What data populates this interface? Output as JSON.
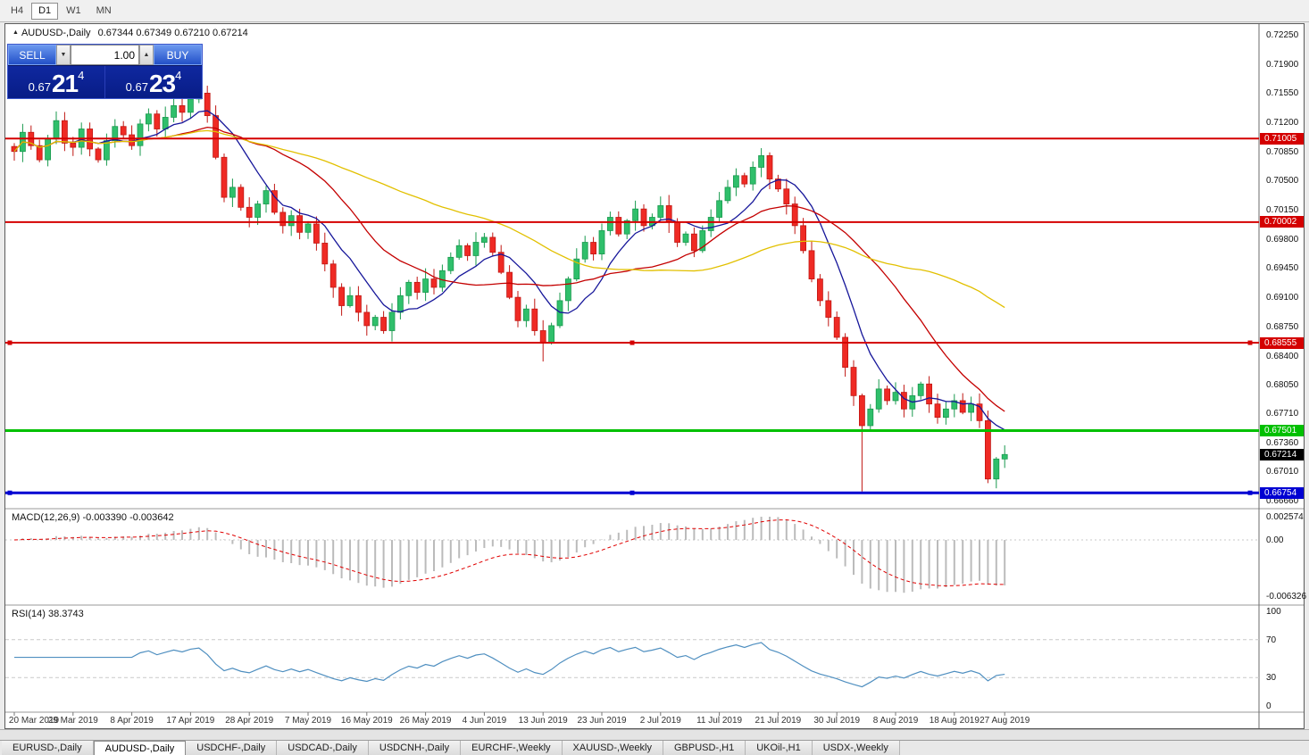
{
  "toolbar": {
    "timeframes": [
      {
        "label": "H4",
        "active": false
      },
      {
        "label": "D1",
        "active": true
      },
      {
        "label": "W1",
        "active": false
      },
      {
        "label": "MN",
        "active": false
      }
    ]
  },
  "chart": {
    "title_marker": "▲",
    "title_symbol": "AUDUSD-,Daily",
    "title_ohlc": "0.67344 0.67349 0.67210 0.67214",
    "trade_panel": {
      "sell_label": "SELL",
      "buy_label": "BUY",
      "volume_value": "1.00",
      "volume_combo_glyph": "▼",
      "volume_up_glyph": "▲",
      "sell_price": {
        "prefix": "0.67",
        "big": "21",
        "sup": "4"
      },
      "buy_price": {
        "prefix": "0.67",
        "big": "23",
        "sup": "4"
      }
    },
    "price_axis_ticks": [
      "0.72250",
      "0.71900",
      "0.71550",
      "0.71200",
      "0.70850",
      "0.70500",
      "0.70150",
      "0.69800",
      "0.69450",
      "0.69100",
      "0.68750",
      "0.68400",
      "0.68050",
      "0.67710",
      "0.67360",
      "0.67010",
      "0.66660"
    ],
    "levels": [
      {
        "price": 0.71005,
        "label": "0.71005",
        "color": "#d40000",
        "width": 2,
        "markers": false
      },
      {
        "price": 0.70002,
        "label": "0.70002",
        "color": "#d40000",
        "width": 2,
        "markers": false
      },
      {
        "price": 0.68555,
        "label": "0.68555",
        "color": "#d40000",
        "width": 2,
        "markers": true
      },
      {
        "price": 0.67501,
        "label": "0.67501",
        "color": "#00c000",
        "width": 3,
        "markers": false
      },
      {
        "price": 0.66754,
        "label": "0.66754",
        "color": "#0000d2",
        "width": 3,
        "markers": true
      }
    ],
    "current_price": {
      "value": 0.67214,
      "label": "0.67214"
    },
    "date_labels": [
      "20 Mar 2019",
      "29 Mar 2019",
      "8 Apr 2019",
      "17 Apr 2019",
      "28 Apr 2019",
      "7 May 2019",
      "16 May 2019",
      "26 May 2019",
      "4 Jun 2019",
      "13 Jun 2019",
      "23 Jun 2019",
      "2 Jul 2019",
      "11 Jul 2019",
      "21 Jul 2019",
      "30 Jul 2019",
      "8 Aug 2019",
      "18 Aug 2019",
      "27 Aug 2019"
    ]
  },
  "macd_panel": {
    "title": "MACD(12,26,9) -0.003390 -0.003642",
    "axis_ticks": [
      "0.002574",
      "0.00",
      "-0.006326"
    ]
  },
  "rsi_panel": {
    "title": "RSI(14) 38.3743",
    "axis_ticks": [
      "100",
      "70",
      "30",
      "0"
    ]
  },
  "tabs": [
    {
      "label": "EURUSD-,Daily",
      "active": false
    },
    {
      "label": "AUDUSD-,Daily",
      "active": true
    },
    {
      "label": "USDCHF-,Daily",
      "active": false
    },
    {
      "label": "USDCAD-,Daily",
      "active": false
    },
    {
      "label": "USDCNH-,Daily",
      "active": false
    },
    {
      "label": "EURCHF-,Weekly",
      "active": false
    },
    {
      "label": "XAUUSD-,Weekly",
      "active": false
    },
    {
      "label": "GBPUSD-,H1",
      "active": false
    },
    {
      "label": "UKOil-,H1",
      "active": false
    },
    {
      "label": "USDX-,Weekly",
      "active": false
    }
  ],
  "colors": {
    "bull": "#2fbf6b",
    "bull_border": "#1a9a4e",
    "bear": "#ef2a24",
    "bear_border": "#c01713",
    "macd_hist": "#bbbbbb",
    "macd_signal": "#e00000",
    "rsi_line": "#4f8fc0",
    "grid_dash": "#c9c9c9"
  },
  "chart_data": {
    "type": "candlestick",
    "symbol": "AUDUSD",
    "timeframe": "Daily",
    "title": "AUDUSD-,Daily",
    "y_range": [
      0.6666,
      0.7225
    ],
    "closes": [
      0.7085,
      0.7108,
      0.7092,
      0.7075,
      0.71,
      0.7122,
      0.7095,
      0.709,
      0.7112,
      0.7088,
      0.7075,
      0.7098,
      0.7115,
      0.7105,
      0.7092,
      0.7118,
      0.713,
      0.7112,
      0.7126,
      0.714,
      0.7132,
      0.7148,
      0.7155,
      0.7128,
      0.7078,
      0.703,
      0.7042,
      0.7018,
      0.7006,
      0.7022,
      0.7038,
      0.7012,
      0.6996,
      0.7008,
      0.6988,
      0.6998,
      0.6975,
      0.695,
      0.6922,
      0.69,
      0.6912,
      0.6892,
      0.6876,
      0.6886,
      0.687,
      0.6892,
      0.6912,
      0.6928,
      0.6916,
      0.6932,
      0.6922,
      0.6942,
      0.6958,
      0.6972,
      0.696,
      0.6976,
      0.6982,
      0.6964,
      0.694,
      0.691,
      0.6882,
      0.6896,
      0.687,
      0.6856,
      0.6876,
      0.6906,
      0.6932,
      0.6956,
      0.6976,
      0.6962,
      0.699,
      0.7006,
      0.6986,
      0.7002,
      0.7016,
      0.6996,
      0.7006,
      0.702,
      0.7,
      0.6976,
      0.6986,
      0.6966,
      0.699,
      0.7006,
      0.7026,
      0.7042,
      0.7056,
      0.7046,
      0.7066,
      0.708,
      0.7052,
      0.704,
      0.7022,
      0.6996,
      0.6966,
      0.6932,
      0.6906,
      0.6886,
      0.6862,
      0.6826,
      0.6792,
      0.6756,
      0.6776,
      0.68,
      0.6786,
      0.6796,
      0.6776,
      0.6792,
      0.6806,
      0.6782,
      0.6766,
      0.6776,
      0.6786,
      0.6772,
      0.6782,
      0.6762,
      0.6692,
      0.6716,
      0.67214
    ],
    "wick_overrides": {
      "22": {
        "high": 0.7162
      },
      "42": {
        "low": 0.6864
      },
      "63": {
        "low": 0.6833
      },
      "89": {
        "high": 0.7089
      },
      "101": {
        "low": 0.6677
      },
      "116": {
        "low": 0.6687
      }
    },
    "date_label_bars": [
      0,
      7,
      14,
      21,
      28,
      35,
      42,
      49,
      56,
      63,
      70,
      77,
      84,
      91,
      98,
      105,
      112,
      118
    ],
    "moving_averages": [
      {
        "period": 8,
        "color": "#16169a"
      },
      {
        "period": 20,
        "color": "#c40000"
      },
      {
        "period": 45,
        "color": "#e2c000"
      }
    ],
    "horizontal_levels": [
      0.71005,
      0.70002,
      0.68555,
      0.67501,
      0.66754
    ],
    "macd": {
      "fast": 12,
      "slow": 26,
      "signal": 9,
      "current_main": -0.00339,
      "current_signal": -0.003642,
      "range": [
        -0.006326,
        0.002574
      ]
    },
    "rsi": {
      "period": 14,
      "value": 38.3743,
      "levels": [
        30,
        70
      ],
      "range": [
        0,
        100
      ]
    },
    "last_price": 0.67214
  }
}
